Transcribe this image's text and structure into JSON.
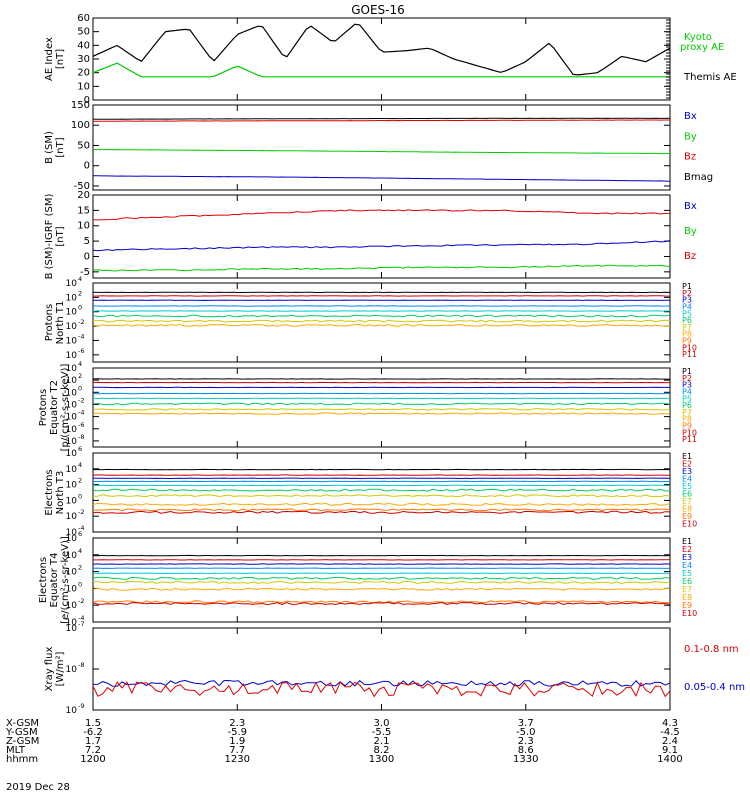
{
  "figure": {
    "title": "GOES-16",
    "date": "2019 Dec 28"
  },
  "ephemeris": {
    "labels": [
      "X-GSM",
      "Y-GSM",
      "Z-GSM",
      "MLT",
      "hhmm"
    ],
    "rows": [
      [
        "1.5",
        "2.3",
        "3.0",
        "3.7",
        "4.3"
      ],
      [
        "-6.2",
        "-5.9",
        "-5.5",
        "-5.0",
        "-4.5"
      ],
      [
        "1.7",
        "1.9",
        "2.1",
        "2.3",
        "2.4"
      ],
      [
        "7.2",
        "7.7",
        "8.2",
        "8.6",
        "9.1"
      ],
      [
        "1200",
        "1230",
        "1300",
        "1330",
        "1400"
      ]
    ]
  },
  "colors": {
    "black": "#000000",
    "red": "#dd0000",
    "green": "#00cc00",
    "blue": "#0000cc",
    "p_colors": [
      "#000000",
      "#cc0000",
      "#0000cc",
      "#0088ff",
      "#00cccc",
      "#00cc66",
      "#cccc00",
      "#ffaa00",
      "#ff7700",
      "#cc0000",
      "#cc0000"
    ]
  },
  "chart_data": [
    {
      "type": "line",
      "ylabel": "AE Index\n[nT]",
      "ylim": [
        0,
        60
      ],
      "y_ticks": [
        "0",
        "10",
        "20",
        "30",
        "40",
        "50",
        "60"
      ],
      "x": [
        1200,
        1205,
        1210,
        1215,
        1220,
        1225,
        1230,
        1235,
        1240,
        1245,
        1250,
        1255,
        1300,
        1305,
        1310,
        1315,
        1320,
        1325,
        1330,
        1335,
        1340,
        1345,
        1350,
        1355,
        1400
      ],
      "series": [
        {
          "name": "Kyoto proxy AE",
          "color": "#00cc00",
          "values": [
            20,
            27,
            17,
            17,
            17,
            17,
            25,
            17,
            17,
            17,
            17,
            17,
            17,
            17,
            17,
            17,
            17,
            17,
            17,
            17,
            17,
            17,
            17,
            17,
            17
          ]
        },
        {
          "name": "Themis AE",
          "color": "#000000",
          "values": [
            32,
            40,
            28,
            50,
            52,
            28,
            48,
            55,
            30,
            55,
            42,
            57,
            35,
            36,
            38,
            30,
            25,
            20,
            28,
            42,
            18,
            20,
            32,
            28,
            38
          ]
        }
      ],
      "legend": [
        "Kyoto\nproxy AE",
        "Themis AE"
      ],
      "legend_colors": [
        "#00cc00",
        "#000000"
      ]
    },
    {
      "type": "line",
      "ylabel": "B (SM)\n[nT]",
      "ylim": [
        -60,
        150
      ],
      "y_ticks": [
        "-50",
        "0",
        "50",
        "100",
        "150"
      ],
      "series": [
        {
          "name": "Bmag",
          "color": "#000000",
          "values": [
            115,
            116,
            117,
            117
          ]
        },
        {
          "name": "Bz",
          "color": "#dd0000",
          "values": [
            110,
            111,
            112,
            113
          ]
        },
        {
          "name": "By",
          "color": "#00cc00",
          "values": [
            40,
            37,
            33,
            30
          ]
        },
        {
          "name": "Bx",
          "color": "#0000cc",
          "values": [
            -25,
            -28,
            -33,
            -38
          ]
        }
      ],
      "legend": [
        "Bx",
        "By",
        "Bz",
        "Bmag"
      ],
      "legend_colors": [
        "#0000cc",
        "#00cc00",
        "#dd0000",
        "#000000"
      ]
    },
    {
      "type": "line",
      "ylabel": "B (SM)-IGRF (SM)\n[nT]",
      "ylim": [
        -7,
        20
      ],
      "y_ticks": [
        "-5",
        "0",
        "5",
        "10",
        "15",
        "20"
      ],
      "series": [
        {
          "name": "Bz",
          "color": "#dd0000",
          "values": [
            12,
            13,
            14,
            15,
            15,
            15,
            14,
            14
          ]
        },
        {
          "name": "Bx",
          "color": "#0000cc",
          "values": [
            2,
            2.5,
            3,
            3,
            3.5,
            3.8,
            4,
            5
          ]
        },
        {
          "name": "By",
          "color": "#00cc00",
          "values": [
            -4.5,
            -4.5,
            -4,
            -4,
            -3.5,
            -3.5,
            -3,
            -3
          ]
        }
      ],
      "legend": [
        "Bx",
        "By",
        "Bz"
      ],
      "legend_colors": [
        "#0000cc",
        "#00cc00",
        "#dd0000"
      ]
    },
    {
      "type": "line",
      "ylabel": "Protons\nNorth T1",
      "ylog": true,
      "ylim_exp": [
        -7,
        4
      ],
      "y_tick_exps": [
        -6,
        -4,
        -2,
        0,
        2,
        4
      ],
      "levels_exp": [
        2.7,
        2.2,
        1.6,
        0.8,
        0.1,
        -0.6,
        -1.3,
        -1.9,
        null,
        null,
        null
      ],
      "legend": [
        "P1",
        "P2",
        "P3",
        "P4",
        "P5",
        "P6",
        "P7",
        "P8",
        "P9",
        "P10",
        "P11"
      ]
    },
    {
      "type": "line",
      "ylabel": "Protons\nEquator T2\n[p/(cm²-s-sr-keV)]",
      "ylog": true,
      "ylim_exp": [
        -9,
        4
      ],
      "y_tick_exps": [
        -8,
        -6,
        -4,
        -2,
        0,
        2,
        4
      ],
      "levels_exp": [
        2.2,
        1.6,
        0.8,
        -0.2,
        -1.0,
        -1.9,
        -2.8,
        -3.5,
        null,
        null,
        null
      ],
      "legend": [
        "P1",
        "P2",
        "P3",
        "P4",
        "P5",
        "P6",
        "P7",
        "P8",
        "P9",
        "P10",
        "P11"
      ]
    },
    {
      "type": "line",
      "ylabel": "Electrons\nNorth T3",
      "ylog": true,
      "ylim_exp": [
        -4,
        6
      ],
      "y_tick_exps": [
        -4,
        -2,
        0,
        2,
        4,
        6
      ],
      "levels_exp": [
        3.9,
        3.2,
        2.8,
        2.4,
        1.9,
        1.3,
        0.6,
        -0.5,
        -1.2,
        -1.5
      ],
      "legend": [
        "E1",
        "E2",
        "E3",
        "E4",
        "E5",
        "E6",
        "E7",
        "E8",
        "E9",
        "E10"
      ]
    },
    {
      "type": "line",
      "ylabel": "Electrons\nEquator T4\n[e/(cm²-s-sr-keV)]",
      "ylog": true,
      "ylim_exp": [
        -4,
        6
      ],
      "y_tick_exps": [
        -4,
        -2,
        0,
        2,
        4,
        6
      ],
      "levels_exp": [
        3.9,
        3.4,
        2.9,
        2.4,
        1.8,
        1.2,
        0.7,
        -0.1,
        -1.6,
        -1.8
      ],
      "legend": [
        "E1",
        "E2",
        "E3",
        "E4",
        "E5",
        "E6",
        "E7",
        "E8",
        "E9",
        "E10"
      ]
    },
    {
      "type": "line",
      "ylabel": "Xray flux\n[W/m²]",
      "ylog": true,
      "ylim_exp": [
        -9,
        -7
      ],
      "y_tick_exps": [
        -9,
        -8,
        -7
      ],
      "series": [
        {
          "name": "0.05-0.4 nm",
          "color": "#0000cc",
          "level_exp": -8.35
        },
        {
          "name": "0.1-0.8 nm",
          "color": "#dd0000",
          "level_exp": -8.5
        }
      ],
      "legend": [
        "0.1-0.8 nm",
        "0.05-0.4 nm"
      ],
      "legend_colors": [
        "#dd0000",
        "#0000cc"
      ]
    }
  ]
}
